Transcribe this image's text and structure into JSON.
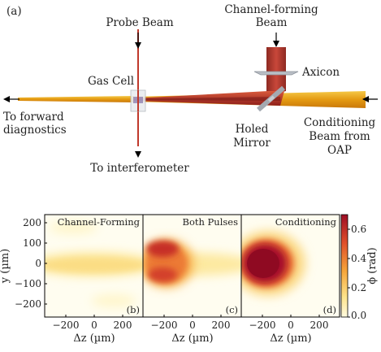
{
  "panel_a": {
    "tag": "(a)",
    "labels": {
      "probe_beam": "Probe Beam",
      "channel_forming_1": "Channel-forming",
      "channel_forming_2": "Beam",
      "axicon": "Axicon",
      "gas_cell": "Gas Cell",
      "to_forward_1": "To forward",
      "to_forward_2": "diagnostics",
      "holed_1": "Holed",
      "holed_2": "Mirror",
      "conditioning_1": "Conditioning",
      "conditioning_2": "Beam from",
      "conditioning_3": "OAP",
      "to_interferometer": "To interferometer"
    },
    "colors": {
      "conditioning_beam": "#e8a21a",
      "channel_beam": "#b8302c",
      "probe_beam": "#c0392b",
      "optic": "#a8aeb6"
    }
  },
  "chart_data": {
    "type": "heatmap",
    "panels": [
      {
        "id": "b",
        "title": "Channel-Forming",
        "tag": "(b)"
      },
      {
        "id": "c",
        "title": "Both Pulses",
        "tag": "(c)"
      },
      {
        "id": "d",
        "title": "Conditioning",
        "tag": "(d)"
      }
    ],
    "xlabel": "Δz (µm)",
    "ylabel": "y (µm)",
    "x_ticks": [
      "−200",
      "0",
      "200"
    ],
    "y_ticks": [
      "200",
      "100",
      "0",
      "−100",
      "−200"
    ],
    "xlim": [
      -350,
      350
    ],
    "ylim": [
      -250,
      250
    ],
    "colorbar": {
      "label": "ϕ (rad)",
      "ticks": [
        "0.0",
        "0.2",
        "0.4",
        "0.6"
      ],
      "range": [
        0,
        0.7
      ],
      "colors": [
        "#fffbe0",
        "#fde38a",
        "#f6a53a",
        "#e0502b",
        "#9e0d25"
      ]
    }
  }
}
